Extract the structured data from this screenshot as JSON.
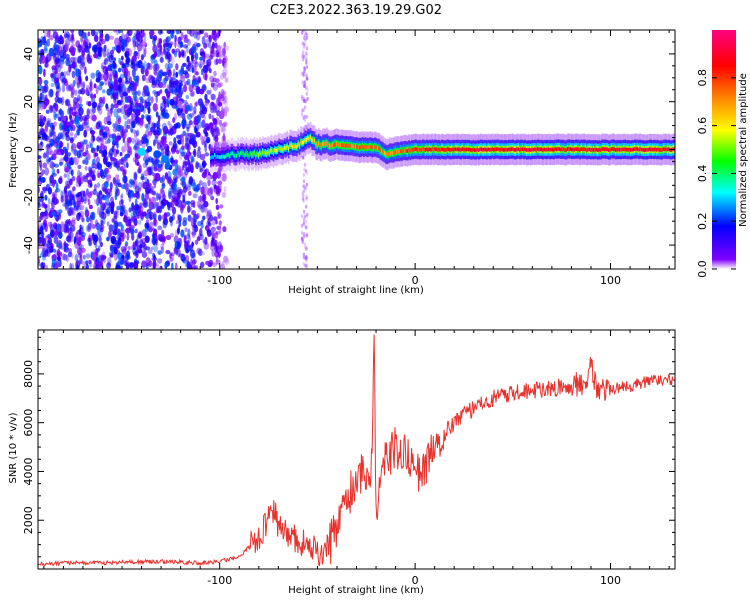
{
  "title": "C2E3.2022.363.19.29.G02",
  "colors": {
    "snr_line": "#e8322d",
    "cbar": [
      "#ffffff",
      "#7f00ff",
      "#0000ff",
      "#00ffff",
      "#00ff00",
      "#ffff00",
      "#ff8000",
      "#ff0000",
      "#ff0080"
    ]
  },
  "chart_data": [
    {
      "type": "heatmap",
      "name": "spectrogram",
      "xlabel": "Height of straight line (km)",
      "ylabel": "Frequency (Hz)",
      "xlim": [
        -193,
        133
      ],
      "ylim": [
        -50,
        50
      ],
      "xticks": [
        -100,
        0,
        100
      ],
      "yticks": [
        -40,
        -20,
        0,
        20,
        40
      ],
      "xtick_labels": [
        "-100",
        "0",
        "100"
      ],
      "ytick_labels": [
        "-40",
        "-20",
        "0",
        "20",
        "40"
      ],
      "colorbar": {
        "label": "Normalized spectral amplitude",
        "range": [
          0,
          1
        ],
        "ticks": [
          "0.0",
          "0.2",
          "0.4",
          "0.6",
          "0.8"
        ],
        "colormap": "white-purple-blue-cyan-green-yellow-red-magenta"
      },
      "carrier_track": {
        "x": [
          -105,
          -90,
          -80,
          -70,
          -60,
          -55,
          -50,
          -40,
          -30,
          -20,
          -15,
          -10,
          0,
          20,
          50,
          80,
          100,
          133
        ],
        "y": [
          -3,
          -2,
          -2,
          0,
          2,
          5,
          2,
          2,
          1,
          1,
          -2,
          -1,
          0,
          0,
          0,
          0,
          0,
          0
        ],
        "peak_amplitude": [
          0.3,
          0.45,
          0.55,
          0.6,
          0.7,
          0.65,
          0.75,
          0.8,
          0.8,
          0.8,
          0.75,
          0.8,
          0.85,
          0.95,
          0.95,
          0.95,
          0.95,
          0.95
        ]
      },
      "noise_region_x": [
        -193,
        -95
      ]
    },
    {
      "type": "line",
      "name": "snr",
      "xlabel": "Height of straight line (km)",
      "ylabel": "SNR (10 * v/v)",
      "xlim": [
        -193,
        133
      ],
      "ylim": [
        0,
        9800
      ],
      "xticks": [
        -100,
        0,
        100
      ],
      "yticks": [
        2000,
        4000,
        6000,
        8000
      ],
      "xtick_labels": [
        "-100",
        "0",
        "100"
      ],
      "ytick_labels": [
        "2000",
        "4000",
        "6000",
        "8000"
      ],
      "x": [
        -193,
        -180,
        -160,
        -140,
        -125,
        -110,
        -100,
        -90,
        -85,
        -80,
        -75,
        -72,
        -70,
        -65,
        -60,
        -55,
        -50,
        -45,
        -40,
        -35,
        -30,
        -25,
        -22,
        -21,
        -20,
        -18,
        -15,
        -10,
        -5,
        0,
        5,
        10,
        20,
        30,
        40,
        50,
        60,
        70,
        80,
        85,
        88,
        90,
        92,
        95,
        100,
        110,
        120,
        133
      ],
      "y": [
        200,
        250,
        250,
        300,
        300,
        250,
        300,
        500,
        900,
        1300,
        2000,
        2500,
        1800,
        1500,
        1200,
        900,
        700,
        700,
        1800,
        2800,
        3800,
        4000,
        4200,
        9800,
        2000,
        3800,
        4400,
        5000,
        4800,
        4000,
        4200,
        5200,
        6000,
        6600,
        7000,
        7200,
        7300,
        7400,
        7500,
        7600,
        7900,
        8200,
        7600,
        7400,
        7400,
        7500,
        7700,
        7800
      ]
    }
  ]
}
